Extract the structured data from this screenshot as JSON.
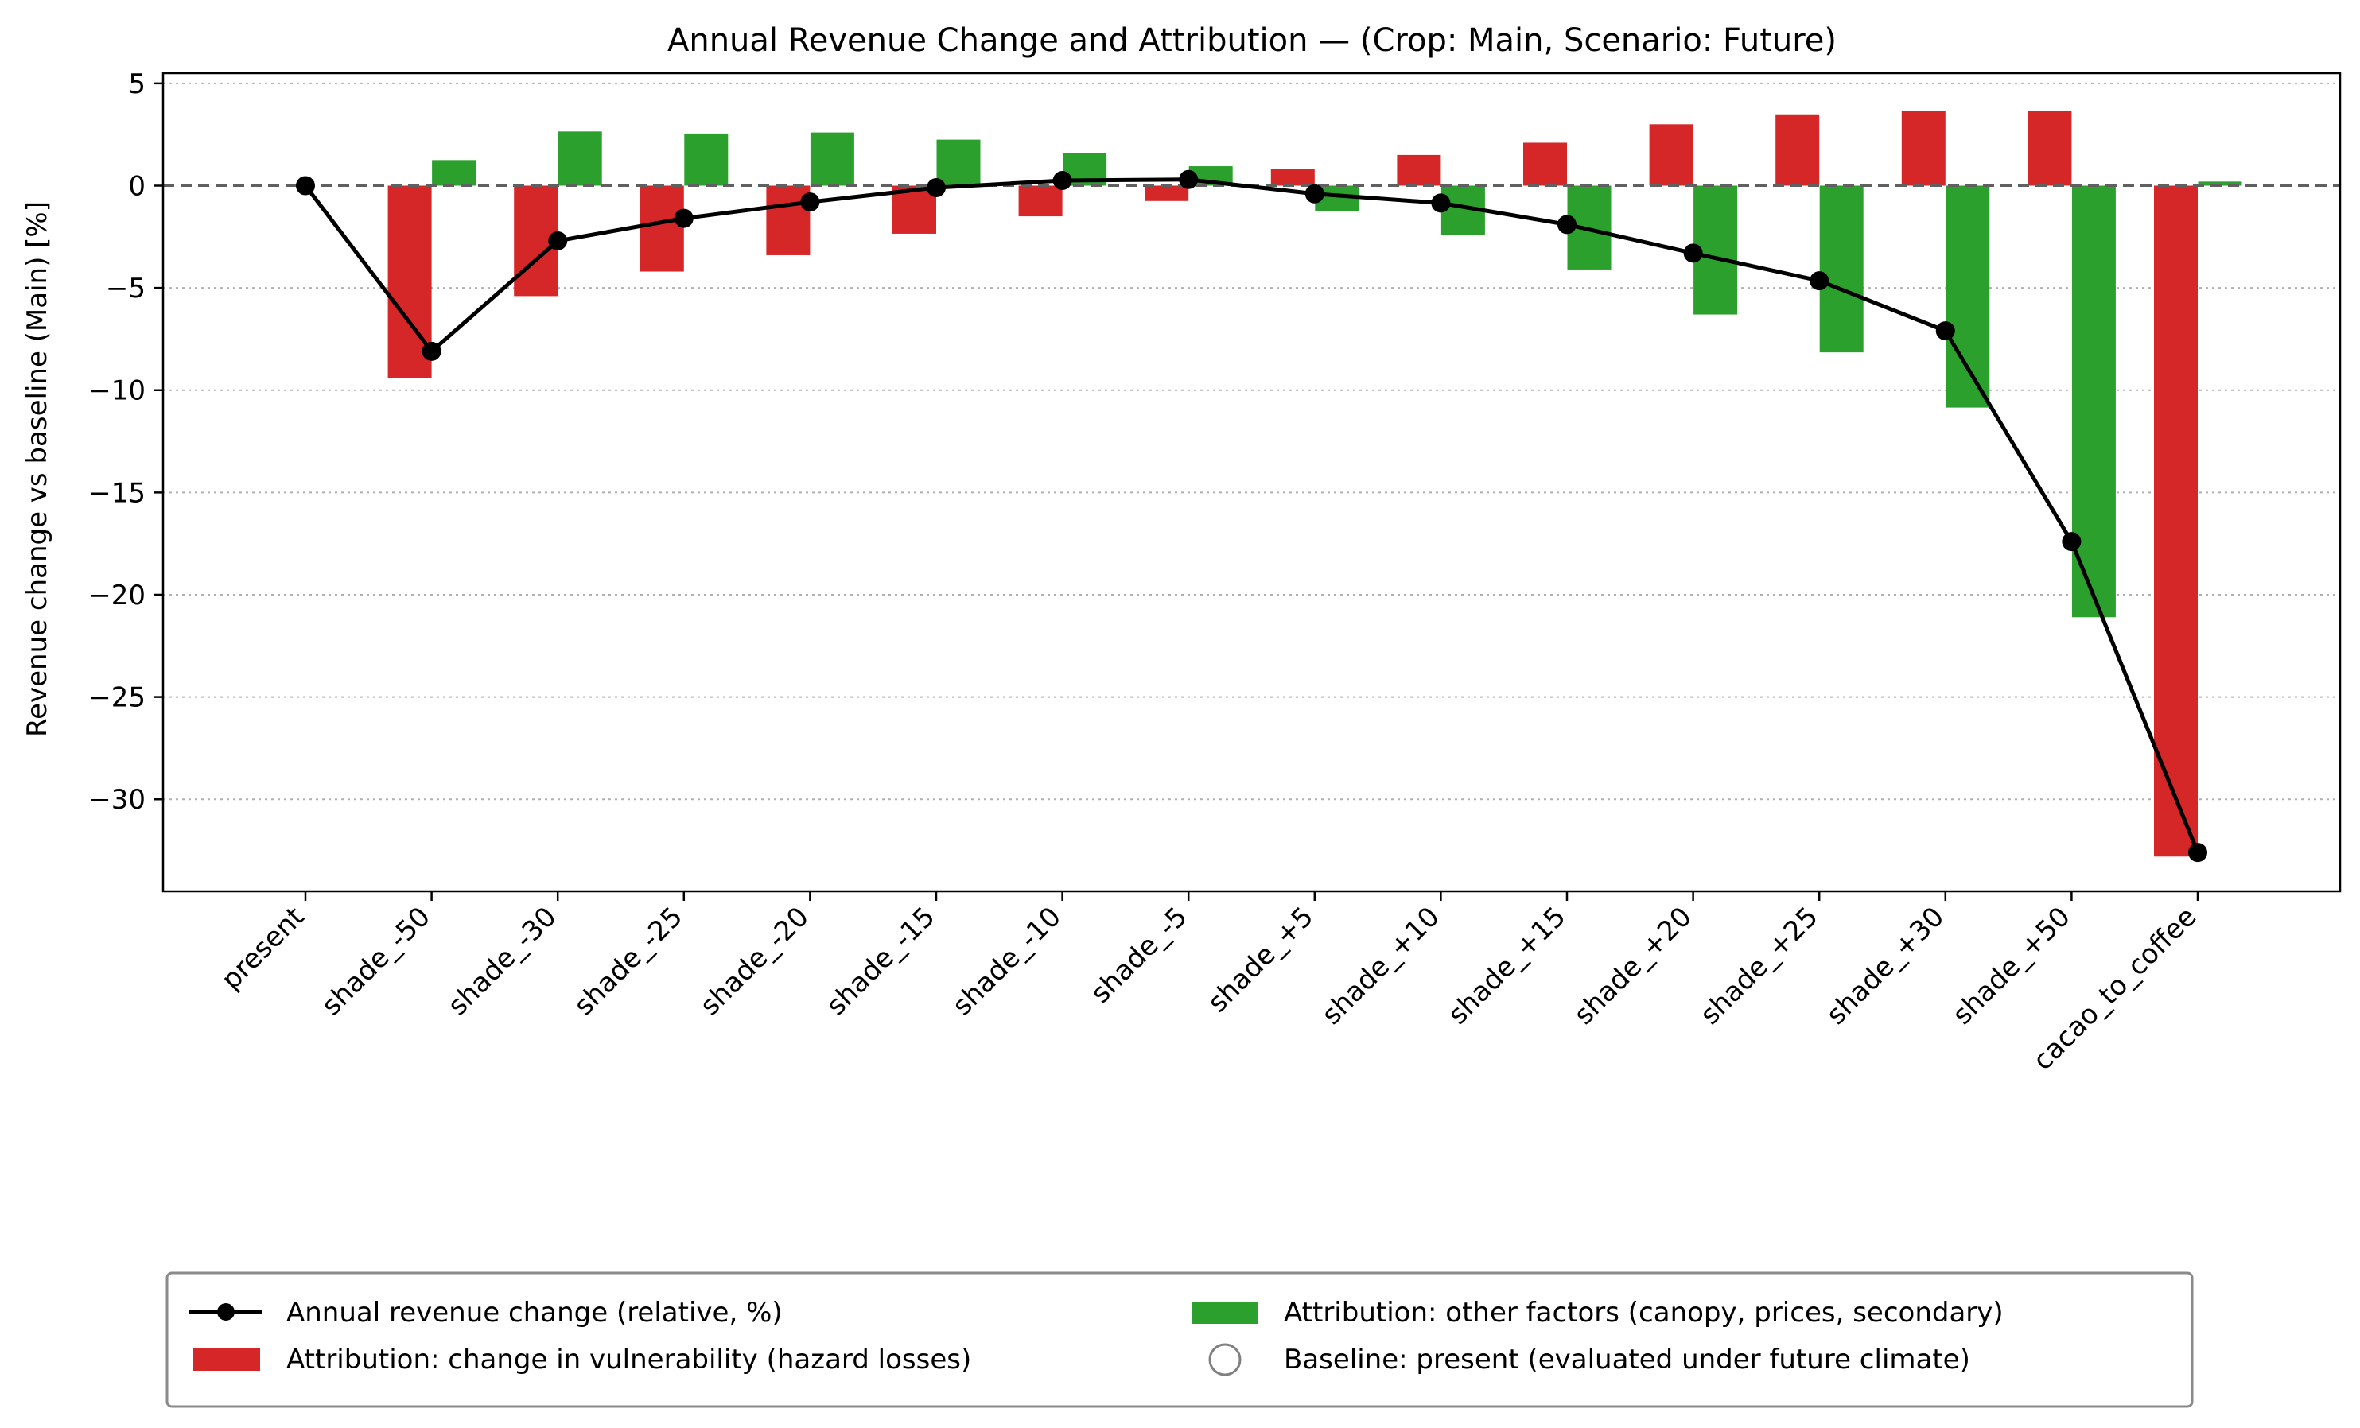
{
  "chart_data": {
    "type": "bar",
    "title": "Annual Revenue Change and Attribution — (Crop: Main, Scenario: Future)",
    "xlabel": "",
    "ylabel": "Revenue change vs baseline (Main) [%]",
    "ylim": [
      -34.5,
      5.5
    ],
    "yticks": [
      5,
      0,
      -5,
      -10,
      -15,
      -20,
      -25,
      -30
    ],
    "ytick_labels": [
      "5",
      "0",
      "−5",
      "−10",
      "−15",
      "−20",
      "−25",
      "−30"
    ],
    "grid": "horizontal dotted",
    "zero_line": "dashed",
    "legend_position": "bottom, outside plot",
    "categories": [
      "present",
      "shade_-50",
      "shade_-30",
      "shade_-25",
      "shade_-20",
      "shade_-15",
      "shade_-10",
      "shade_-5",
      "shade_+5",
      "shade_+10",
      "shade_+15",
      "shade_+20",
      "shade_+25",
      "shade_+30",
      "shade_+50",
      "cacao_to_coffee"
    ],
    "series": [
      {
        "name": "Annual revenue change (relative, %)",
        "kind": "line",
        "color": "#000000",
        "values": [
          0.0,
          -8.1,
          -2.7,
          -1.6,
          -0.8,
          -0.1,
          0.25,
          0.3,
          -0.4,
          -0.85,
          -1.9,
          -3.3,
          -4.65,
          -7.1,
          -17.4,
          -32.6
        ]
      },
      {
        "name": "Attribution: change in vulnerability (hazard losses)",
        "kind": "bar",
        "color": "#d62728",
        "values": [
          0,
          -9.4,
          -5.4,
          -4.2,
          -3.4,
          -2.35,
          -1.5,
          -0.75,
          0.8,
          1.5,
          2.1,
          3.0,
          3.45,
          3.65,
          3.65,
          -32.8
        ]
      },
      {
        "name": "Attribution: other factors (canopy, prices, secondary)",
        "kind": "bar",
        "color": "#2ca02c",
        "values": [
          0,
          1.25,
          2.65,
          2.55,
          2.6,
          2.25,
          1.6,
          0.95,
          -1.25,
          -2.4,
          -4.1,
          -6.3,
          -8.15,
          -10.85,
          -21.1,
          0.2
        ]
      }
    ],
    "legend": [
      {
        "label": "Annual revenue change (relative, %)",
        "marker": "line-dot",
        "color": "#000000"
      },
      {
        "label": "Attribution: other factors (canopy, prices, secondary)",
        "marker": "patch",
        "color": "#2ca02c"
      },
      {
        "label": "Attribution: change in vulnerability (hazard losses)",
        "marker": "patch",
        "color": "#d62728"
      },
      {
        "label": "Baseline: present (evaluated under future climate)",
        "marker": "hollow-circle",
        "color": "#808080"
      }
    ]
  }
}
